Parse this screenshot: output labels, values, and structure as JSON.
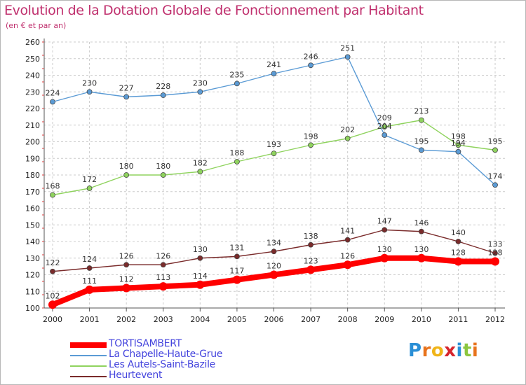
{
  "title": "Evolution de la Dotation Globale de Fonctionnement par Habitant",
  "subtitle": "(en € et par an)",
  "logo": {
    "letters": [
      "P",
      "r",
      "o",
      "x",
      "i",
      "t",
      "i"
    ],
    "colors": [
      "#2a8fd6",
      "#e8731c",
      "#f0b418",
      "#d6252d",
      "#2a8fd6",
      "#8cc63f",
      "#e8731c"
    ]
  },
  "chart_data": {
    "type": "line",
    "title": "Evolution de la Dotation Globale de Fonctionnement par Habitant",
    "subtitle": "(en € et par an)",
    "x": [
      2000,
      2001,
      2002,
      2003,
      2004,
      2005,
      2006,
      2007,
      2008,
      2009,
      2010,
      2011,
      2012
    ],
    "ylim": [
      100,
      260
    ],
    "yticks": [
      100,
      110,
      120,
      130,
      140,
      150,
      160,
      170,
      180,
      190,
      200,
      210,
      220,
      230,
      240,
      250,
      260
    ],
    "grid": true,
    "legend_position": "bottom-left",
    "series": [
      {
        "name": "TORTISAMBERT",
        "color": "#ff0000",
        "values": [
          102,
          111,
          112,
          113,
          114,
          117,
          120,
          123,
          126,
          130,
          130,
          128,
          128
        ]
      },
      {
        "name": "La Chapelle-Haute-Grue",
        "color": "#5b9bd5",
        "values": [
          224,
          230,
          227,
          228,
          230,
          235,
          241,
          246,
          251,
          204,
          195,
          194,
          174
        ]
      },
      {
        "name": "Les Autels-Saint-Bazile",
        "color": "#8fd35e",
        "values": [
          168,
          172,
          180,
          180,
          182,
          188,
          193,
          198,
          202,
          209,
          213,
          198,
          195
        ]
      },
      {
        "name": "Heurtevent",
        "color": "#7a2b2b",
        "values": [
          122,
          124,
          126,
          126,
          130,
          131,
          134,
          138,
          141,
          147,
          146,
          140,
          133
        ]
      }
    ]
  }
}
